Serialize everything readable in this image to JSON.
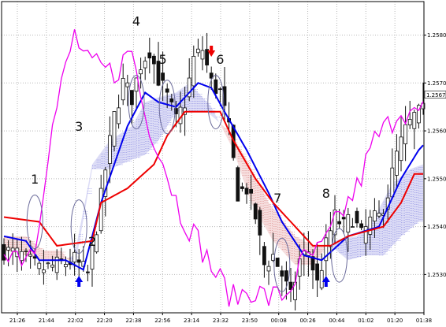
{
  "chart_data": {
    "type": "candlestick",
    "instrument_note": "",
    "ylim": [
      1.2522,
      1.2587
    ],
    "y_ticks": [
      "1.25800",
      "1.25700",
      "1.25600",
      "1.25500",
      "1.25400",
      "1.25300"
    ],
    "y_tick_values": [
      1.258,
      1.257,
      1.256,
      1.255,
      1.254,
      1.253
    ],
    "current_price_label": "1.25675",
    "current_price": 1.25675,
    "x_ticks": [
      "21:26",
      "21:44",
      "22:02",
      "22:20",
      "22:38",
      "22:56",
      "23:14",
      "23:32",
      "23:50",
      "00:08",
      "00:26",
      "00:44",
      "01:02",
      "01:20",
      "01:38"
    ],
    "grid": "dotted",
    "price_anchors": [
      [
        0,
        1.2535
      ],
      [
        4,
        1.2534
      ],
      [
        8,
        1.2531
      ],
      [
        12,
        1.2532
      ],
      [
        16,
        1.2533
      ],
      [
        19,
        1.253
      ],
      [
        21,
        1.254
      ],
      [
        23,
        1.2552
      ],
      [
        25,
        1.2563
      ],
      [
        27,
        1.257
      ],
      [
        29,
        1.2567
      ],
      [
        31,
        1.2574
      ],
      [
        33,
        1.2577
      ],
      [
        35,
        1.2571
      ],
      [
        37,
        1.2567
      ],
      [
        39,
        1.2562
      ],
      [
        41,
        1.2566
      ],
      [
        43,
        1.2575
      ],
      [
        45,
        1.2577
      ],
      [
        47,
        1.257
      ],
      [
        49,
        1.2568
      ],
      [
        51,
        1.256
      ],
      [
        53,
        1.2547
      ],
      [
        55,
        1.2548
      ],
      [
        57,
        1.2542
      ],
      [
        59,
        1.2532
      ],
      [
        61,
        1.2534
      ],
      [
        63,
        1.253
      ],
      [
        65,
        1.2525
      ],
      [
        67,
        1.2533
      ],
      [
        69,
        1.2535
      ],
      [
        71,
        1.2528
      ],
      [
        73,
        1.2536
      ],
      [
        75,
        1.2542
      ],
      [
        77,
        1.254
      ],
      [
        79,
        1.2542
      ],
      [
        81,
        1.2538
      ],
      [
        83,
        1.2541
      ],
      [
        85,
        1.2542
      ],
      [
        87,
        1.2547
      ],
      [
        89,
        1.2555
      ],
      [
        91,
        1.256
      ],
      [
        93,
        1.2563
      ],
      [
        95,
        1.2564
      ]
    ],
    "series": [
      {
        "name": "",
        "color": "#0000ee",
        "values": [
          [
            0,
            1.2538
          ],
          [
            5,
            1.2537
          ],
          [
            8,
            1.2533
          ],
          [
            14,
            1.2533
          ],
          [
            18,
            1.2531
          ],
          [
            22,
            1.2545
          ],
          [
            25,
            1.2553
          ],
          [
            28,
            1.2561
          ],
          [
            32,
            1.2568
          ],
          [
            35,
            1.2566
          ],
          [
            39,
            1.2565
          ],
          [
            44,
            1.257
          ],
          [
            47,
            1.2569
          ],
          [
            50,
            1.2564
          ],
          [
            55,
            1.2556
          ],
          [
            60,
            1.2547
          ],
          [
            63,
            1.2541
          ],
          [
            68,
            1.2534
          ],
          [
            72,
            1.2533
          ],
          [
            78,
            1.2538
          ],
          [
            85,
            1.254
          ],
          [
            90,
            1.255
          ],
          [
            94,
            1.2556
          ],
          [
            95,
            1.2557
          ]
        ]
      },
      {
        "name": "",
        "color": "#ee0000",
        "values": [
          [
            0,
            1.2542
          ],
          [
            8,
            1.2541
          ],
          [
            12,
            1.2536
          ],
          [
            20,
            1.2537
          ],
          [
            22,
            1.2545
          ],
          [
            28,
            1.2548
          ],
          [
            34,
            1.2553
          ],
          [
            37,
            1.2559
          ],
          [
            41,
            1.2564
          ],
          [
            49,
            1.2564
          ],
          [
            52,
            1.2558
          ],
          [
            57,
            1.255
          ],
          [
            61,
            1.2545
          ],
          [
            65,
            1.2541
          ],
          [
            70,
            1.2536
          ],
          [
            74,
            1.2536
          ],
          [
            78,
            1.2538
          ],
          [
            86,
            1.254
          ],
          [
            90,
            1.2545
          ],
          [
            93,
            1.2551
          ],
          [
            95,
            1.2551
          ]
        ]
      },
      {
        "name": "",
        "color": "#ee00ee",
        "values": [
          [
            0,
            1.2536
          ],
          [
            4,
            1.2534
          ],
          [
            7,
            1.2536
          ],
          [
            10,
            1.2556
          ],
          [
            12,
            1.2565
          ],
          [
            14,
            1.2573
          ],
          [
            16,
            1.258
          ],
          [
            18,
            1.2576
          ],
          [
            19,
            1.2574
          ],
          [
            22,
            1.2573
          ],
          [
            25,
            1.2572
          ],
          [
            29,
            1.2577
          ],
          [
            32,
            1.2563
          ],
          [
            35,
            1.2557
          ],
          [
            37,
            1.2551
          ],
          [
            40,
            1.2543
          ],
          [
            44,
            1.2537
          ],
          [
            48,
            1.253
          ],
          [
            52,
            1.2525
          ],
          [
            56,
            1.2527
          ],
          [
            60,
            1.2525
          ],
          [
            64,
            1.2526
          ],
          [
            68,
            1.2533
          ],
          [
            72,
            1.2535
          ],
          [
            76,
            1.2542
          ],
          [
            80,
            1.2548
          ],
          [
            84,
            1.2558
          ],
          [
            87,
            1.2561
          ],
          [
            90,
            1.2565
          ],
          [
            93,
            1.2563
          ],
          [
            95,
            1.2564
          ]
        ]
      }
    ],
    "cloud": {
      "span_a": [
        [
          0,
          1.2535
        ],
        [
          5,
          1.2534
        ],
        [
          9,
          1.2533
        ],
        [
          13,
          1.2533
        ],
        [
          16,
          1.2534
        ],
        [
          20,
          1.2553
        ],
        [
          24,
          1.2558
        ],
        [
          29,
          1.2561
        ],
        [
          32,
          1.2566
        ],
        [
          35,
          1.2567
        ],
        [
          39,
          1.2568
        ],
        [
          42,
          1.257
        ],
        [
          44,
          1.2568
        ],
        [
          47,
          1.2565
        ],
        [
          52,
          1.2556
        ],
        [
          56,
          1.2545
        ],
        [
          61,
          1.2537
        ],
        [
          66,
          1.2532
        ],
        [
          70,
          1.2532
        ],
        [
          74,
          1.2537
        ],
        [
          80,
          1.2538
        ],
        [
          84,
          1.2542
        ],
        [
          88,
          1.2549
        ],
        [
          92,
          1.2552
        ],
        [
          95,
          1.2553
        ]
      ],
      "span_b": [
        [
          0,
          1.2538
        ],
        [
          5,
          1.2538
        ],
        [
          9,
          1.2535
        ],
        [
          13,
          1.2535
        ],
        [
          16,
          1.2531
        ],
        [
          20,
          1.2552
        ],
        [
          24,
          1.2552
        ],
        [
          29,
          1.2554
        ],
        [
          32,
          1.2555
        ],
        [
          35,
          1.2558
        ],
        [
          39,
          1.2564
        ],
        [
          42,
          1.2564
        ],
        [
          46,
          1.2564
        ],
        [
          51,
          1.256
        ],
        [
          55,
          1.2554
        ],
        [
          60,
          1.2545
        ],
        [
          66,
          1.2538
        ],
        [
          70,
          1.2536
        ],
        [
          74,
          1.2536
        ],
        [
          78,
          1.2533
        ],
        [
          82,
          1.2534
        ],
        [
          86,
          1.2534
        ],
        [
          90,
          1.2538
        ],
        [
          94,
          1.2541
        ],
        [
          95,
          1.2541
        ]
      ]
    },
    "annotations": [
      {
        "label": "1",
        "bar": 7,
        "price": 1.2549
      },
      {
        "label": "2",
        "bar": 20,
        "price": 1.2536
      },
      {
        "label": "3",
        "bar": 17,
        "price": 1.256
      },
      {
        "label": "4",
        "bar": 30,
        "price": 1.2582
      },
      {
        "label": "5",
        "bar": 36,
        "price": 1.2574
      },
      {
        "label": "6",
        "bar": 49,
        "price": 1.2574
      },
      {
        "label": "7",
        "bar": 62,
        "price": 1.2545
      },
      {
        "label": "8",
        "bar": 73,
        "price": 1.2546
      }
    ],
    "arrows": [
      {
        "direction": "up",
        "color": "#0000ee",
        "bar": 17
      },
      {
        "direction": "down",
        "color": "#ee0000",
        "bar": 47
      },
      {
        "direction": "up",
        "color": "#0000ee",
        "bar": 73
      }
    ],
    "highlight_ellipses": [
      {
        "bar": 7,
        "price": 1.2541
      },
      {
        "bar": 17,
        "price": 1.254
      },
      {
        "bar": 30,
        "price": 1.2566
      },
      {
        "bar": 37,
        "price": 1.2565
      },
      {
        "bar": 48,
        "price": 1.2566
      },
      {
        "bar": 63,
        "price": 1.2532
      },
      {
        "bar": 76,
        "price": 1.2534
      }
    ]
  }
}
